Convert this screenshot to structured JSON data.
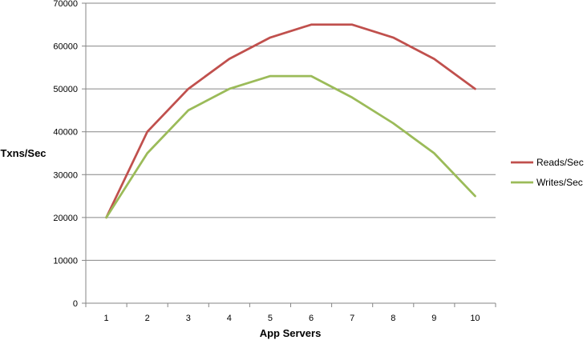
{
  "chart_data": {
    "type": "line",
    "title": "",
    "xlabel": "App Servers",
    "ylabel": "Txns/Sec",
    "x": [
      1,
      2,
      3,
      4,
      5,
      6,
      7,
      8,
      9,
      10
    ],
    "x_tick_labels": [
      "1",
      "2",
      "3",
      "4",
      "5",
      "6",
      "7",
      "8",
      "9",
      "10"
    ],
    "ylim": [
      0,
      70000
    ],
    "y_tick_labels": [
      "0",
      "10000",
      "20000",
      "30000",
      "40000",
      "50000",
      "60000",
      "70000"
    ],
    "grid": "horizontal",
    "legend_position": "right",
    "series": [
      {
        "name": "Reads/Sec",
        "color": "#c0504d",
        "values": [
          20000,
          40000,
          50000,
          57000,
          62000,
          65000,
          65000,
          62000,
          57000,
          50000
        ]
      },
      {
        "name": "Writes/Sec",
        "color": "#9bbb59",
        "values": [
          20000,
          35000,
          45000,
          50000,
          53000,
          53000,
          48000,
          42000,
          35000,
          25000
        ]
      }
    ]
  }
}
